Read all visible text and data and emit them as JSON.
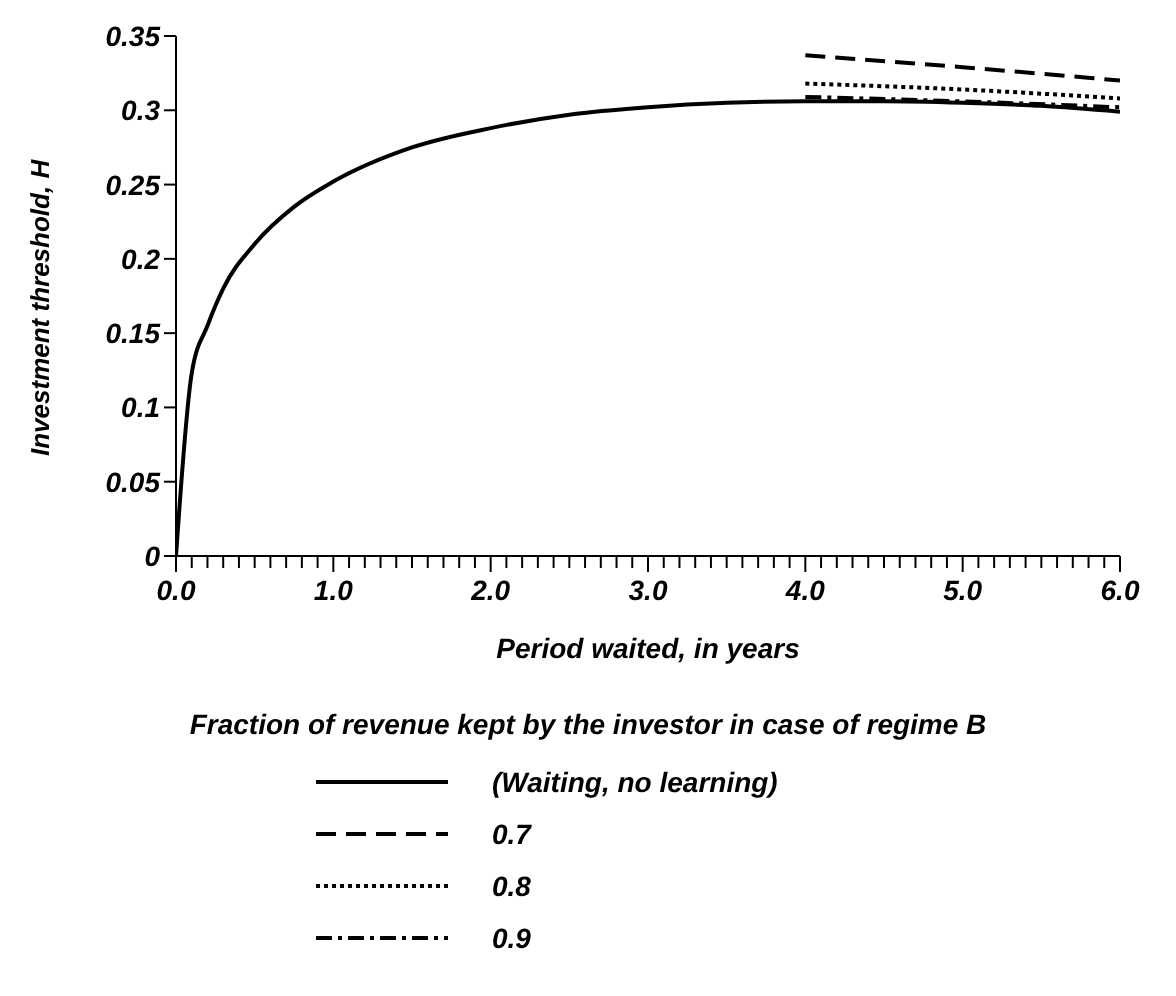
{
  "chart_data": {
    "type": "line",
    "xlabel": "Period waited, in years",
    "ylabel": "Investment threshold, H",
    "legend_title": "Fraction of revenue kept by the investor in case of regime B",
    "legend": "bottom",
    "grid": false,
    "marker": "none",
    "xlim": [
      0,
      6
    ],
    "ylim": [
      0,
      0.35
    ],
    "yticks": [
      {
        "value": 0,
        "label": "0"
      },
      0.05,
      0.1,
      0.15,
      0.2,
      0.25,
      0.3,
      0.35
    ],
    "xticks": [
      {
        "value": 0,
        "label": "0.0"
      },
      {
        "value": 0.1,
        "label": null
      },
      {
        "value": 0.2,
        "label": null
      },
      {
        "value": 0.3,
        "label": null
      },
      {
        "value": 0.4,
        "label": null
      },
      {
        "value": 0.5,
        "label": null
      },
      {
        "value": 0.6,
        "label": null
      },
      {
        "value": 0.7,
        "label": null
      },
      {
        "value": 0.8,
        "label": null
      },
      {
        "value": 0.9,
        "label": null
      },
      {
        "value": 1,
        "label": "1.0"
      },
      {
        "value": 1.1,
        "label": null
      },
      {
        "value": 1.2,
        "label": null
      },
      {
        "value": 1.3,
        "label": null
      },
      {
        "value": 1.4,
        "label": null
      },
      {
        "value": 1.5,
        "label": null
      },
      {
        "value": 1.6,
        "label": null
      },
      {
        "value": 1.7,
        "label": null
      },
      {
        "value": 1.8,
        "label": null
      },
      {
        "value": 1.9,
        "label": null
      },
      {
        "value": 2,
        "label": "2.0"
      },
      {
        "value": 2.1,
        "label": null
      },
      {
        "value": 2.2,
        "label": null
      },
      {
        "value": 2.3,
        "label": null
      },
      {
        "value": 2.4,
        "label": null
      },
      {
        "value": 2.5,
        "label": null
      },
      {
        "value": 2.6,
        "label": null
      },
      {
        "value": 2.7,
        "label": null
      },
      {
        "value": 2.8,
        "label": null
      },
      {
        "value": 2.9,
        "label": null
      },
      {
        "value": 3,
        "label": "3.0"
      },
      {
        "value": 3.1,
        "label": null
      },
      {
        "value": 3.2,
        "label": null
      },
      {
        "value": 3.3,
        "label": null
      },
      {
        "value": 3.4,
        "label": null
      },
      {
        "value": 3.5,
        "label": null
      },
      {
        "value": 3.6,
        "label": null
      },
      {
        "value": 3.7,
        "label": null
      },
      {
        "value": 3.8,
        "label": null
      },
      {
        "value": 3.9,
        "label": null
      },
      {
        "value": 4,
        "label": "4.0"
      },
      {
        "value": 4.1,
        "label": null
      },
      {
        "value": 4.2,
        "label": null
      },
      {
        "value": 4.3,
        "label": null
      },
      {
        "value": 4.4,
        "label": null
      },
      {
        "value": 4.5,
        "label": null
      },
      {
        "value": 4.6,
        "label": null
      },
      {
        "value": 4.7,
        "label": null
      },
      {
        "value": 4.8,
        "label": null
      },
      {
        "value": 4.9,
        "label": null
      },
      {
        "value": 5,
        "label": "5.0"
      },
      {
        "value": 5.1,
        "label": null
      },
      {
        "value": 5.2,
        "label": null
      },
      {
        "value": 5.3,
        "label": null
      },
      {
        "value": 5.4,
        "label": null
      },
      {
        "value": 5.5,
        "label": null
      },
      {
        "value": 5.6,
        "label": null
      },
      {
        "value": 5.7,
        "label": null
      },
      {
        "value": 5.8,
        "label": null
      },
      {
        "value": 5.9,
        "label": null
      },
      {
        "value": 6,
        "label": "6.0"
      }
    ],
    "series": [
      {
        "name": "(Waiting, no learning)",
        "color": "#000000",
        "line_style": "solid",
        "x": [
          0,
          0.1,
          0.2,
          0.3,
          0.5,
          0.75,
          1,
          1.5,
          2,
          2.5,
          3,
          3.5,
          4,
          4.5,
          5,
          5.5,
          6
        ],
        "values": [
          0,
          0.123,
          0.155,
          0.18,
          0.21,
          0.235,
          0.252,
          0.275,
          0.288,
          0.297,
          0.302,
          0.305,
          0.306,
          0.306,
          0.305,
          0.303,
          0.299
        ]
      },
      {
        "name": "0.7",
        "color": "#000000",
        "line_style": "dashed",
        "x": [
          4,
          5,
          6
        ],
        "values": [
          0.337,
          0.329,
          0.32
        ]
      },
      {
        "name": "0.8",
        "color": "#000000",
        "line_style": "dotted",
        "x": [
          4,
          5,
          6
        ],
        "values": [
          0.318,
          0.314,
          0.308
        ]
      },
      {
        "name": "0.9",
        "color": "#000000",
        "line_style": "dashdot",
        "x": [
          4,
          5,
          6
        ],
        "values": [
          0.309,
          0.306,
          0.302
        ]
      }
    ]
  }
}
